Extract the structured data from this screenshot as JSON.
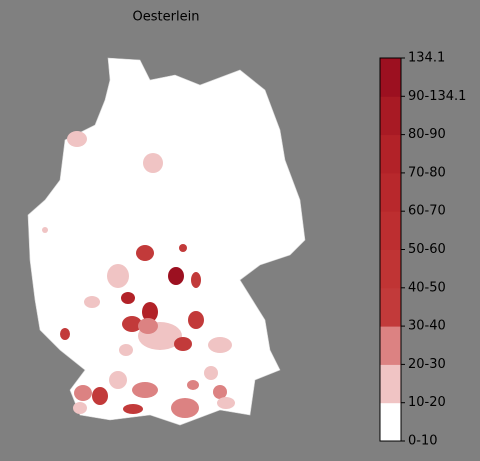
{
  "map": {
    "title": "Oesterlein",
    "legend": {
      "labels": [
        "0-10",
        "10-20",
        "20-30",
        "30-40",
        "40-50",
        "50-60",
        "60-70",
        "70-80",
        "80-90",
        "90-134.1",
        "134.1"
      ],
      "colors": [
        "#ffffff",
        "#f0c4c4",
        "#dc8282",
        "#c23a3a",
        "#c03434",
        "#bd2e30",
        "#b8282c",
        "#b22228",
        "#a81a24",
        "#9c1020"
      ]
    }
  }
}
